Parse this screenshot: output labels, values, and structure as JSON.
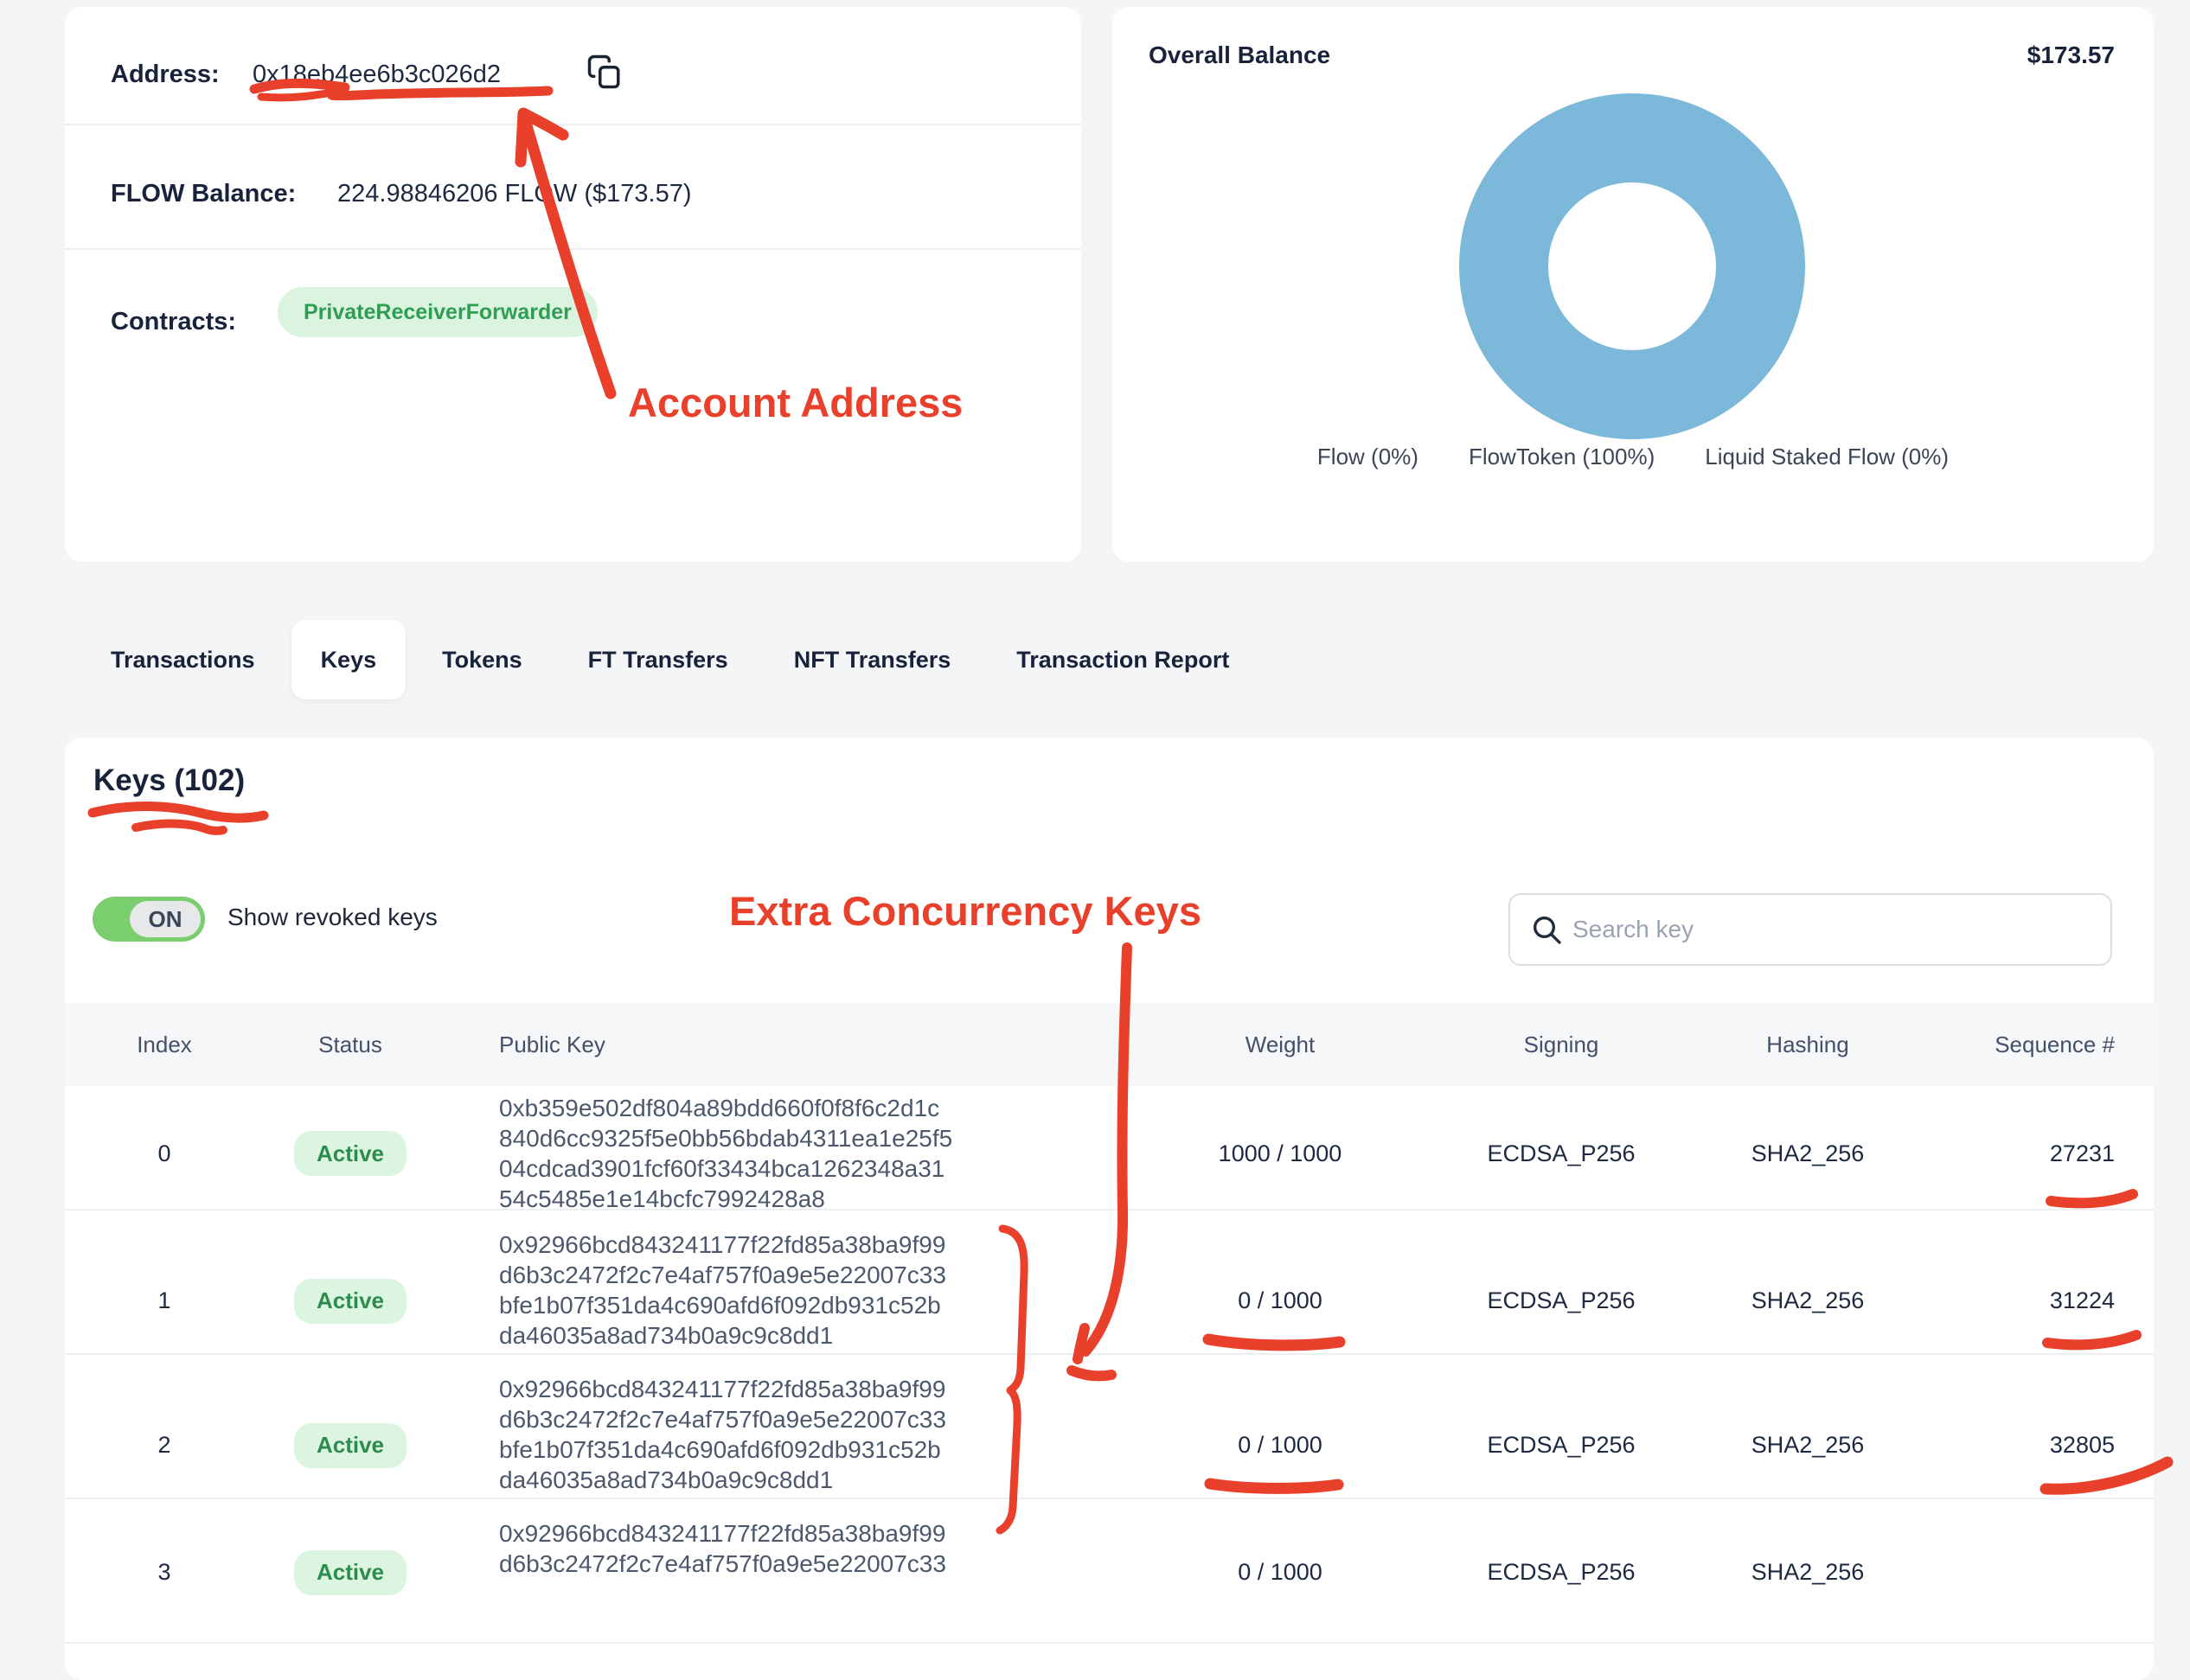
{
  "account_card": {
    "address_label": "Address:",
    "address_value": "0x18eb4ee6b3c026d2",
    "flow_balance_label": "FLOW Balance:",
    "flow_balance_value": "224.98846206 FLOW ($173.57)",
    "contracts_label": "Contracts:",
    "contract_badge": "PrivateReceiverForwarder"
  },
  "balance_card": {
    "title": "Overall Balance",
    "total": "$173.57",
    "legend": [
      "Flow (0%)",
      "FlowToken (100%)",
      "Liquid Staked Flow (0%)"
    ]
  },
  "chart_data": {
    "type": "pie",
    "labels": [
      "Flow",
      "FlowToken",
      "Liquid Staked Flow"
    ],
    "values": [
      0,
      100,
      0
    ],
    "unit": "%",
    "title": "Overall Balance",
    "total_label": "$173.57",
    "ring_color": "#7cb8d9",
    "legend_position": "bottom"
  },
  "tabs": [
    {
      "label": "Transactions",
      "active": false
    },
    {
      "label": "Keys",
      "active": true
    },
    {
      "label": "Tokens",
      "active": false
    },
    {
      "label": "FT Transfers",
      "active": false
    },
    {
      "label": "NFT Transfers",
      "active": false
    },
    {
      "label": "Transaction Report",
      "active": false
    }
  ],
  "keys_section": {
    "title": "Keys (102)",
    "toggle_state": "ON",
    "toggle_label": "Show revoked keys",
    "search_placeholder": "Search key",
    "table": {
      "columns": [
        "Index",
        "Status",
        "Public Key",
        "Weight",
        "Signing",
        "Hashing",
        "Sequence #"
      ],
      "rows": [
        {
          "index": "0",
          "status": "Active",
          "public_key_lines": [
            "0xb359e502df804a89bdd660f0f8f6c2d1c",
            "840d6cc9325f5e0bb56bdab4311ea1e25f5",
            "04cdcad3901fcf60f33434bca1262348a31",
            "54c5485e1e14bcfc7992428a8"
          ],
          "weight": "1000 / 1000",
          "signing": "ECDSA_P256",
          "hashing": "SHA2_256",
          "sequence": "27231"
        },
        {
          "index": "1",
          "status": "Active",
          "public_key_lines": [
            "0x92966bcd843241177f22fd85a38ba9f99",
            "d6b3c2472f2c7e4af757f0a9e5e22007c33",
            "bfe1b07f351da4c690afd6f092db931c52b",
            "da46035a8ad734b0a9c9c8dd1"
          ],
          "weight": "0 / 1000",
          "signing": "ECDSA_P256",
          "hashing": "SHA2_256",
          "sequence": "31224"
        },
        {
          "index": "2",
          "status": "Active",
          "public_key_lines": [
            "0x92966bcd843241177f22fd85a38ba9f99",
            "d6b3c2472f2c7e4af757f0a9e5e22007c33",
            "bfe1b07f351da4c690afd6f092db931c52b",
            "da46035a8ad734b0a9c9c8dd1"
          ],
          "weight": "0 / 1000",
          "signing": "ECDSA_P256",
          "hashing": "SHA2_256",
          "sequence": "32805"
        },
        {
          "index": "3",
          "status": "Active",
          "public_key_lines": [
            "0x92966bcd843241177f22fd85a38ba9f99",
            "d6b3c2472f2c7e4af757f0a9e5e22007c33"
          ],
          "weight": "0 / 1000",
          "signing": "ECDSA_P256",
          "hashing": "SHA2_256",
          "sequence": ""
        }
      ]
    }
  },
  "annotations": {
    "account_address_label": "Account Address",
    "extra_keys_label": "Extra Concurrency Keys",
    "color": "#e8402b"
  }
}
